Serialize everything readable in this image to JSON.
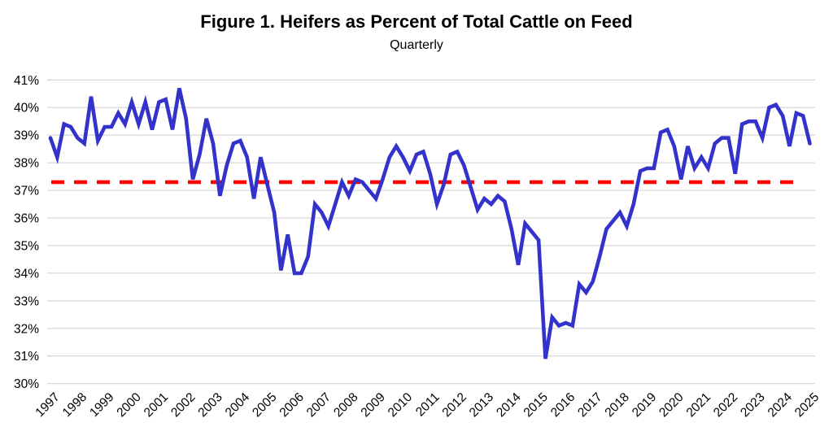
{
  "chart_data": {
    "type": "line",
    "title": "Figure 1. Heifers as Percent of Total Cattle on Feed",
    "subtitle": "Quarterly",
    "frequency": "quarterly",
    "start_period": "1997 Q1",
    "end_period": "2025 Q1",
    "xlabel": "",
    "ylabel": "",
    "ylim": [
      30,
      41
    ],
    "y_tick_labels": [
      "30%",
      "31%",
      "32%",
      "33%",
      "34%",
      "35%",
      "36%",
      "37%",
      "38%",
      "39%",
      "40%",
      "41%"
    ],
    "x_tick_labels": [
      "1997",
      "1998",
      "1999",
      "2000",
      "2001",
      "2002",
      "2003",
      "2004",
      "2005",
      "2006",
      "2007",
      "2008",
      "2009",
      "2010",
      "2011",
      "2012",
      "2013",
      "2014",
      "2015",
      "2016",
      "2017",
      "2018",
      "2019",
      "2020",
      "2021",
      "2022",
      "2023",
      "2024",
      "2025"
    ],
    "grid": "horizontal",
    "legend_position": "none",
    "colors": {
      "series_line": "#3333CC",
      "reference_line": "#FF0000",
      "gridline": "#D9D9D9",
      "text": "#000000",
      "background": "#FFFFFF"
    },
    "series": [
      {
        "name": "Heifers as percent of total cattle on feed",
        "color": "#3333CC",
        "values": [
          38.9,
          38.2,
          39.4,
          39.3,
          38.9,
          38.7,
          40.4,
          38.8,
          39.3,
          39.3,
          39.8,
          39.4,
          40.2,
          39.4,
          40.2,
          39.2,
          40.2,
          40.3,
          39.2,
          40.7,
          39.6,
          37.4,
          38.3,
          39.6,
          38.7,
          36.8,
          37.9,
          38.7,
          38.8,
          38.2,
          36.7,
          38.2,
          37.2,
          36.2,
          34.1,
          35.4,
          34.0,
          34.0,
          34.6,
          36.5,
          36.2,
          35.7,
          36.5,
          37.3,
          36.8,
          37.4,
          37.3,
          37.0,
          36.7,
          37.4,
          38.2,
          38.6,
          38.2,
          37.7,
          38.3,
          38.4,
          37.6,
          36.5,
          37.2,
          38.3,
          38.4,
          37.9,
          37.1,
          36.3,
          36.7,
          36.5,
          36.8,
          36.6,
          35.6,
          34.3,
          35.8,
          35.5,
          35.2,
          30.9,
          32.4,
          32.1,
          32.2,
          32.1,
          33.6,
          33.3,
          33.7,
          34.6,
          35.6,
          35.9,
          36.2,
          35.7,
          36.5,
          37.7,
          37.8,
          37.8,
          39.1,
          39.2,
          38.6,
          37.4,
          38.6,
          37.8,
          38.2,
          37.8,
          38.7,
          38.9,
          38.9,
          37.6,
          39.4,
          39.5,
          39.5,
          38.9,
          40.0,
          40.1,
          39.7,
          38.6,
          39.8,
          39.7,
          38.7
        ]
      }
    ],
    "reference_line": {
      "value": 37.3,
      "style": "dashed",
      "color": "#FF0000",
      "meaning": "horizontal dashed reference level"
    }
  }
}
